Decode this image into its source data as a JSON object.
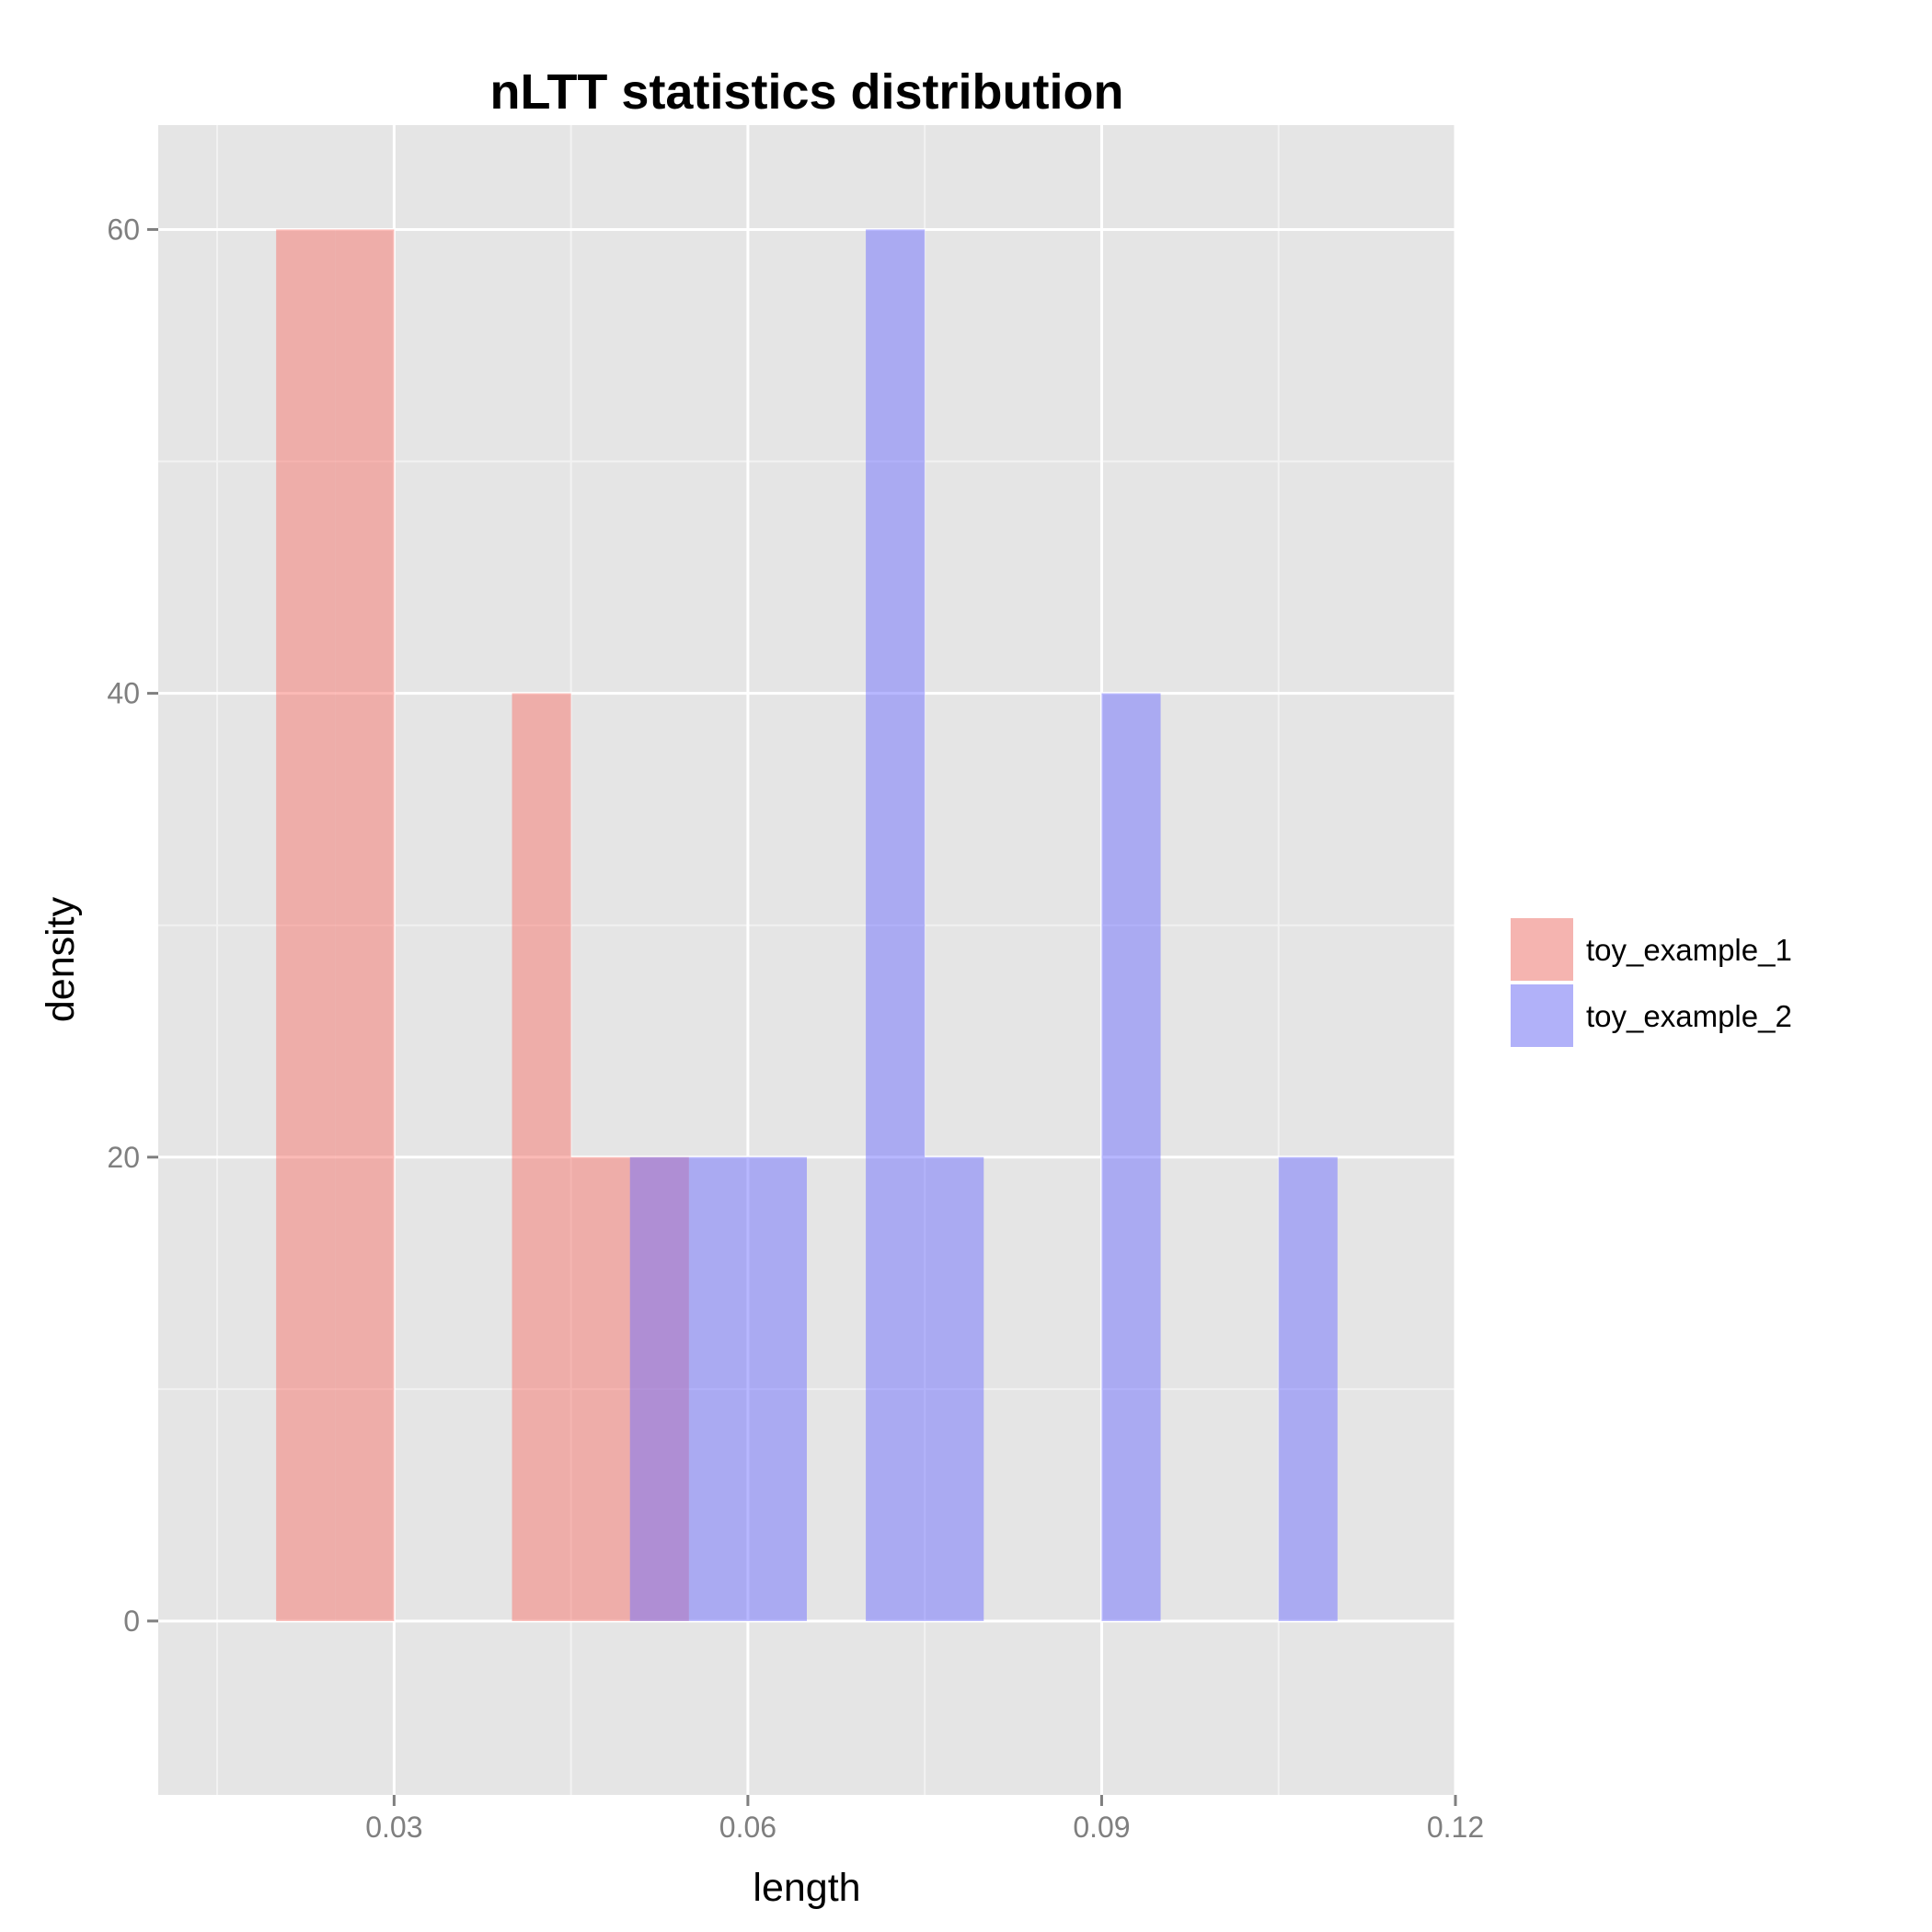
{
  "chart_data": {
    "type": "bar",
    "title": "nLTT statistics distribution",
    "xlabel": "length",
    "ylabel": "density",
    "xlim": [
      0.01,
      0.12
    ],
    "ylim": [
      -7.5,
      64.5
    ],
    "x_ticks": [
      {
        "value": 0.03,
        "label": "0.03"
      },
      {
        "value": 0.06,
        "label": "0.06"
      },
      {
        "value": 0.09,
        "label": "0.09"
      },
      {
        "value": 0.12,
        "label": "0.12"
      }
    ],
    "y_ticks": [
      {
        "value": 0,
        "label": "0"
      },
      {
        "value": 20,
        "label": "20"
      },
      {
        "value": 40,
        "label": "40"
      },
      {
        "value": 60,
        "label": "60"
      }
    ],
    "bin_width": 0.005,
    "grid": true,
    "legend_position": "right",
    "series": [
      {
        "name": "toy_example_1",
        "color": "#f8766d",
        "bins": [
          {
            "x0": 0.02,
            "x1": 0.025,
            "density": 60
          },
          {
            "x0": 0.025,
            "x1": 0.03,
            "density": 60
          },
          {
            "x0": 0.04,
            "x1": 0.045,
            "density": 40
          },
          {
            "x0": 0.045,
            "x1": 0.05,
            "density": 20
          },
          {
            "x0": 0.05,
            "x1": 0.055,
            "density": 20
          }
        ]
      },
      {
        "name": "toy_example_2",
        "color": "#7070ff",
        "bins": [
          {
            "x0": 0.05,
            "x1": 0.055,
            "density": 20
          },
          {
            "x0": 0.055,
            "x1": 0.06,
            "density": 20
          },
          {
            "x0": 0.06,
            "x1": 0.065,
            "density": 20
          },
          {
            "x0": 0.07,
            "x1": 0.075,
            "density": 60
          },
          {
            "x0": 0.075,
            "x1": 0.08,
            "density": 20
          },
          {
            "x0": 0.09,
            "x1": 0.095,
            "density": 40
          },
          {
            "x0": 0.105,
            "x1": 0.11,
            "density": 20
          }
        ]
      }
    ]
  }
}
